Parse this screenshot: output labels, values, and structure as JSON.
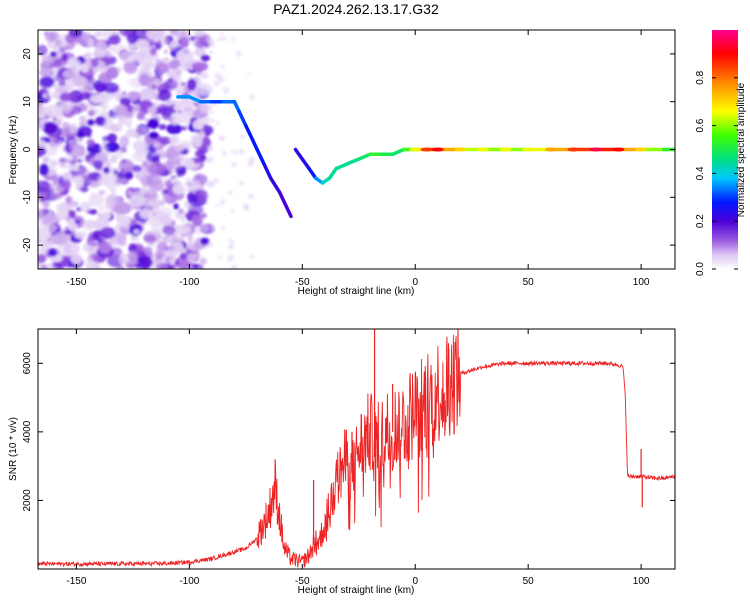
{
  "title": "PAZ1.2024.262.13.17.G32",
  "chart_data": [
    {
      "type": "heatmap",
      "xlabel": "Height of straight line (km)",
      "ylabel": "Frequency (Hz)",
      "xlim": [
        -167,
        115
      ],
      "ylim": [
        -25,
        25
      ],
      "xticks": [
        -150,
        -100,
        -50,
        0,
        50,
        100
      ],
      "yticks": [
        -20,
        -10,
        0,
        10,
        20
      ],
      "colorbar": {
        "label": "Normalized spectral amplitude",
        "range": [
          0,
          1
        ],
        "ticks": [
          "0.0",
          "0.2",
          "0.4",
          "0.6",
          "0.8"
        ],
        "tick_values": [
          0.0,
          0.2,
          0.4,
          0.6,
          0.8
        ],
        "colors": [
          "#ffffff",
          "#dcc6f2",
          "#9a58e0",
          "#4a00d8",
          "#0018ff",
          "#00c8ff",
          "#00e080",
          "#40ff00",
          "#ffff00",
          "#ff8800",
          "#ff0000",
          "#ff0090"
        ]
      },
      "ridge": {
        "x": [
          -105,
          -100,
          -95,
          -90,
          -85,
          -80,
          -78,
          -75,
          -72,
          -70,
          -67,
          -64,
          -60,
          -57,
          -55,
          -53,
          -50,
          -47,
          -44,
          -41,
          -38,
          -35,
          -30,
          -25,
          -20,
          -15,
          -10,
          -5,
          0,
          5,
          10,
          20,
          30,
          40,
          50,
          60,
          70,
          80,
          90,
          100,
          110,
          115
        ],
        "y": [
          11,
          11,
          10,
          10,
          10,
          10,
          8,
          5,
          2,
          0,
          -3,
          -6,
          -9,
          -12,
          -14,
          0,
          -2,
          -4,
          -6,
          -7,
          -6,
          -4,
          -3,
          -2,
          -1,
          -1,
          -1,
          0,
          0,
          0,
          0,
          0,
          0,
          0,
          0,
          0,
          0,
          0,
          0,
          0,
          0,
          0
        ],
        "amplitude": [
          0.35,
          0.35,
          0.35,
          0.3,
          0.3,
          0.35,
          0.3,
          0.3,
          0.25,
          0.3,
          0.25,
          0.25,
          0.2,
          0.2,
          0.2,
          0.2,
          0.25,
          0.25,
          0.3,
          0.4,
          0.45,
          0.45,
          0.45,
          0.45,
          0.5,
          0.55,
          0.45,
          0.5,
          0.6,
          0.8,
          0.85,
          0.65,
          0.6,
          0.6,
          0.6,
          0.7,
          0.8,
          0.9,
          0.85,
          0.65,
          0.55,
          0.5
        ]
      }
    },
    {
      "type": "line",
      "xlabel": "Height of straight line (km)",
      "ylabel": "SNR (10 * v/v)",
      "xlim": [
        -167,
        115
      ],
      "ylim": [
        0,
        7000
      ],
      "xticks": [
        -150,
        -100,
        -50,
        0,
        50,
        100
      ],
      "yticks": [
        2000,
        4000,
        6000
      ],
      "series": [
        {
          "color": "#ee2222",
          "x": [
            -167,
            -150,
            -130,
            -110,
            -100,
            -95,
            -90,
            -85,
            -80,
            -75,
            -70,
            -65,
            -62,
            -60,
            -58,
            -55,
            -50,
            -47,
            -45,
            -42,
            -40,
            -38,
            -35,
            -32,
            -30,
            -28,
            -25,
            -22,
            -20,
            -18,
            -15,
            -12,
            -10,
            -8,
            -5,
            -2,
            0,
            5,
            10,
            15,
            20,
            25,
            30,
            35,
            40,
            45,
            50,
            60,
            70,
            80,
            85,
            90,
            92,
            93,
            94,
            96,
            100,
            105,
            110,
            115
          ],
          "y": [
            150,
            150,
            150,
            160,
            200,
            250,
            300,
            400,
            500,
            600,
            900,
            1600,
            2400,
            1500,
            600,
            300,
            200,
            400,
            700,
            900,
            1300,
            1800,
            2500,
            3000,
            3200,
            2800,
            3500,
            3800,
            4000,
            3600,
            3800,
            4100,
            4000,
            4200,
            4300,
            4500,
            4600,
            4900,
            5200,
            5500,
            5700,
            5800,
            5900,
            5950,
            6000,
            6000,
            6000,
            6000,
            6000,
            6000,
            6000,
            5950,
            5900,
            5000,
            2700,
            2700,
            2700,
            2650,
            2650,
            2700
          ],
          "spikes": [
            {
              "x": -62,
              "y": 3200
            },
            {
              "x": -45,
              "y": 2600
            },
            {
              "x": -28,
              "y": 4000
            },
            {
              "x": -18,
              "y": 7000
            },
            {
              "x": -10,
              "y": 5400
            },
            {
              "x": 100,
              "y": 3500
            },
            {
              "x": 100.5,
              "y": 1800
            }
          ]
        }
      ]
    }
  ]
}
